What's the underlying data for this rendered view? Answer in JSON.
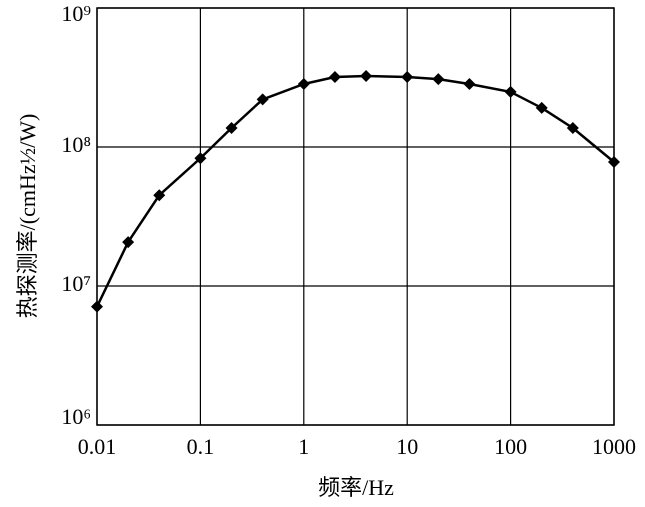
{
  "chart_data": {
    "type": "line",
    "xlabel": "频率/Hz",
    "ylabel": "热探测率/(cmHz½/W)",
    "x": [
      0.01,
      0.02,
      0.04,
      0.1,
      0.2,
      0.4,
      1,
      2,
      4,
      10,
      20,
      40,
      100,
      200,
      400,
      1000
    ],
    "series": [
      {
        "color": "#000000",
        "values": [
          7100000.0,
          20700000.0,
          45000000.0,
          83000000.0,
          137000000.0,
          220000000.0,
          284000000.0,
          319000000.0,
          324000000.0,
          319000000.0,
          308000000.0,
          284000000.0,
          249000000.0,
          191000000.0,
          137000000.0,
          78000000.0
        ]
      }
    ],
    "xscale": "log",
    "yscale": "log",
    "xlim": [
      0.01,
      1000
    ],
    "xticks": [
      0.01,
      0.1,
      1,
      10,
      100,
      1000
    ],
    "ylim": [
      1000000.0,
      1000000000.0
    ],
    "yticks": [
      {
        "value": 1000000.0,
        "label": "10⁶"
      },
      {
        "value": 10000000.0,
        "label": "10⁷"
      },
      {
        "value": 100000000.0,
        "label": "10⁸"
      },
      {
        "value": 1000000000.0,
        "label": "10⁹"
      }
    ],
    "grid": true
  }
}
